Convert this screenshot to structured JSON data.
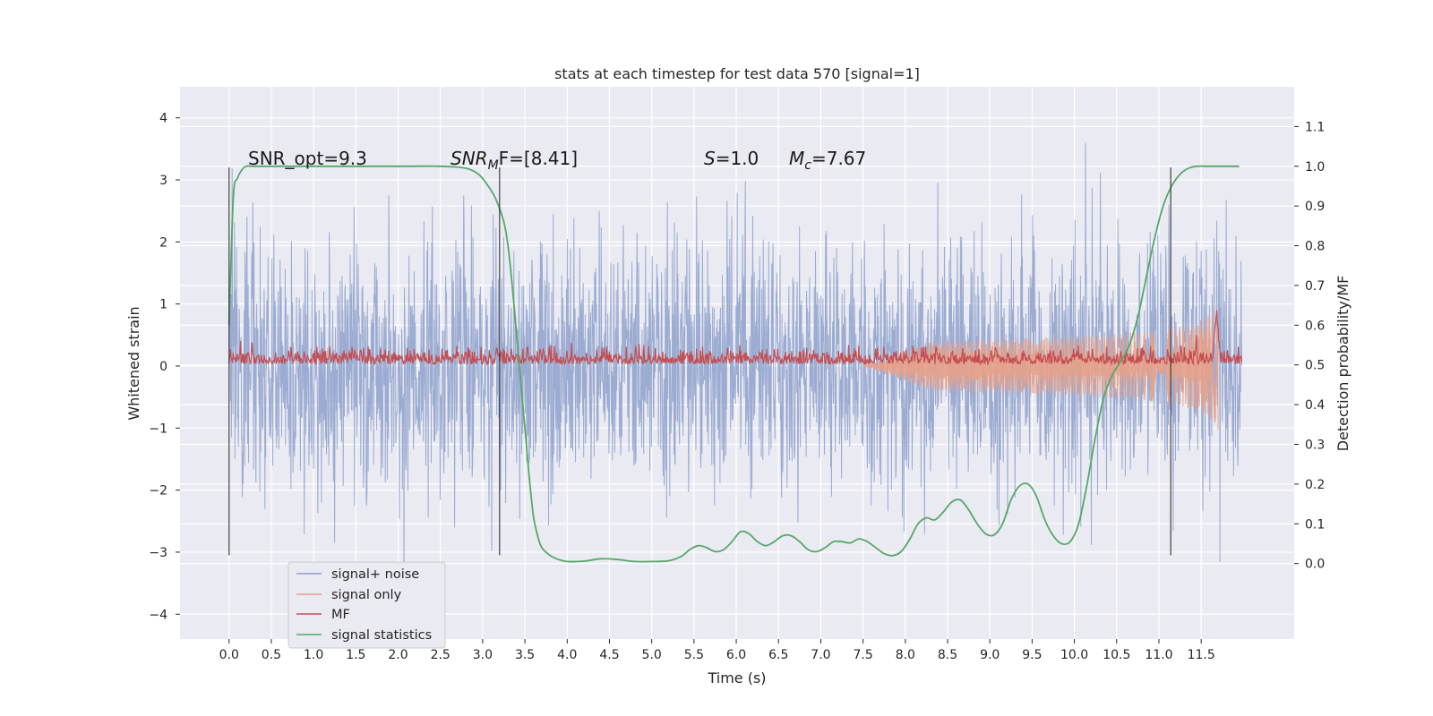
{
  "chart_data": {
    "type": "line",
    "title": "stats at each timestep for test data 570 [signal=1]",
    "xlabel": "Time (s)",
    "ylabel_left": "Whitened strain",
    "ylabel_right": "Detection probability/MF",
    "xlim": [
      -0.58,
      12.6
    ],
    "ylim_left": [
      -4.4,
      4.5
    ],
    "ylim_right": [
      -0.19,
      1.2
    ],
    "x_ticks": [
      "0.0",
      "0.5",
      "1.0",
      "1.5",
      "2.0",
      "2.5",
      "3.0",
      "3.5",
      "4.0",
      "4.5",
      "5.0",
      "5.5",
      "6.0",
      "6.5",
      "7.0",
      "7.5",
      "8.0",
      "8.5",
      "9.0",
      "9.5",
      "10.0",
      "10.5",
      "11.0",
      "11.5"
    ],
    "y_left_ticks": [
      "4",
      "3",
      "2",
      "1",
      "0",
      "−1",
      "−2",
      "−3",
      "−4"
    ],
    "y_right_ticks": [
      "1.1",
      "1.0",
      "0.9",
      "0.8",
      "0.7",
      "0.6",
      "0.5",
      "0.4",
      "0.3",
      "0.2",
      "0.1",
      "0.0"
    ],
    "grid": true,
    "legend_position": "lower-left",
    "annotations": {
      "snr_opt": "SNR_opt=9.3",
      "snr_mf_prefix": "SNR",
      "snr_mf_sub": "M",
      "snr_mf_suffix": "F=[8.41]",
      "s_var": "S",
      "s_value": "=1.0",
      "mc_var": "M",
      "mc_sub": "c",
      "mc_value": "=7.67"
    },
    "vertical_markers": [
      0.0,
      3.2,
      11.14
    ],
    "series": [
      {
        "name": "signal+ noise",
        "color": "#8da0cb",
        "axis": "left",
        "kind": "noise",
        "std": 1.0,
        "x_range": [
          0.0,
          11.98
        ]
      },
      {
        "name": "signal only",
        "color": "#e8a087",
        "axis": "left",
        "kind": "chirp_envelope",
        "start": 7.5,
        "peak_time": 11.7,
        "peak_amplitude": 1.3
      },
      {
        "name": "MF",
        "color": "#c44e52",
        "axis": "right",
        "kind": "mf",
        "baseline": 0.5,
        "peak_time": 11.68,
        "peak_value": 0.63
      },
      {
        "name": "signal statistics",
        "color": "#55a868",
        "axis": "right",
        "kind": "line",
        "x": [
          0.0,
          0.05,
          0.1,
          0.15,
          0.2,
          0.3,
          0.5,
          1.0,
          2.0,
          2.5,
          2.8,
          2.95,
          3.05,
          3.15,
          3.25,
          3.3,
          3.35,
          3.4,
          3.45,
          3.5,
          3.55,
          3.6,
          3.65,
          3.7,
          3.8,
          3.9,
          4.0,
          4.2,
          4.4,
          4.6,
          4.8,
          5.0,
          5.2,
          5.35,
          5.45,
          5.55,
          5.65,
          5.75,
          5.85,
          5.95,
          6.05,
          6.15,
          6.25,
          6.35,
          6.45,
          6.55,
          6.65,
          6.75,
          6.85,
          6.95,
          7.05,
          7.15,
          7.25,
          7.35,
          7.45,
          7.55,
          7.65,
          7.75,
          7.85,
          7.95,
          8.05,
          8.15,
          8.25,
          8.35,
          8.45,
          8.55,
          8.65,
          8.75,
          8.85,
          8.95,
          9.05,
          9.15,
          9.25,
          9.35,
          9.45,
          9.55,
          9.65,
          9.75,
          9.85,
          9.95,
          10.05,
          10.15,
          10.25,
          10.35,
          10.45,
          10.55,
          10.65,
          10.75,
          10.85,
          10.95,
          11.05,
          11.15,
          11.25,
          11.35,
          11.45,
          11.6,
          11.8,
          11.95
        ],
        "y": [
          0.6,
          0.92,
          0.97,
          0.99,
          1.0,
          1.0,
          1.0,
          1.0,
          1.0,
          1.0,
          0.995,
          0.98,
          0.955,
          0.92,
          0.86,
          0.8,
          0.7,
          0.58,
          0.46,
          0.34,
          0.22,
          0.12,
          0.07,
          0.04,
          0.02,
          0.01,
          0.005,
          0.006,
          0.012,
          0.01,
          0.005,
          0.005,
          0.007,
          0.018,
          0.035,
          0.045,
          0.04,
          0.03,
          0.035,
          0.055,
          0.08,
          0.075,
          0.055,
          0.045,
          0.055,
          0.07,
          0.07,
          0.055,
          0.035,
          0.03,
          0.04,
          0.055,
          0.055,
          0.052,
          0.062,
          0.055,
          0.04,
          0.025,
          0.02,
          0.03,
          0.06,
          0.1,
          0.115,
          0.11,
          0.13,
          0.155,
          0.16,
          0.135,
          0.1,
          0.075,
          0.072,
          0.1,
          0.16,
          0.195,
          0.2,
          0.17,
          0.11,
          0.07,
          0.05,
          0.055,
          0.1,
          0.2,
          0.32,
          0.42,
          0.475,
          0.51,
          0.55,
          0.62,
          0.72,
          0.82,
          0.9,
          0.95,
          0.98,
          0.995,
          1.0,
          1.0,
          1.0,
          1.0
        ]
      }
    ]
  }
}
